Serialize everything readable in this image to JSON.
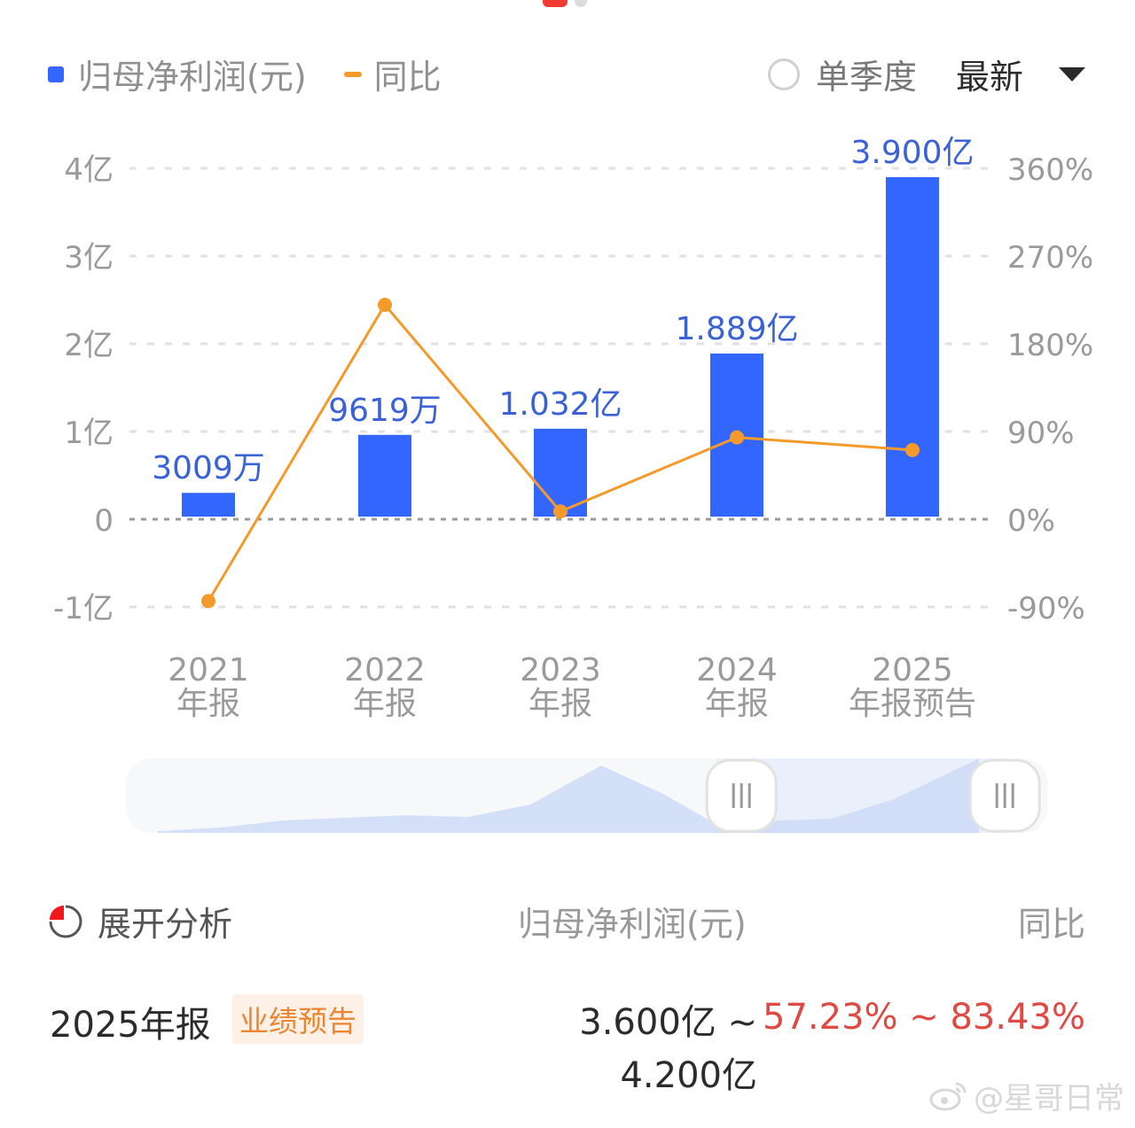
{
  "pager": {
    "active_index": 0,
    "count": 2
  },
  "legend": {
    "bar_label": "归母净利润(元)",
    "line_label": "同比"
  },
  "controls": {
    "single_quarter_label": "单季度",
    "single_quarter_checked": false,
    "period_select_value": "最新"
  },
  "colors": {
    "bar": "#3366ff",
    "line": "#f39a2b",
    "bar_label": "#3a62d6",
    "axis_text": "#9a9a9a",
    "negative_highlight": "#e04a44",
    "badge_bg": "#fdf0e6",
    "badge_text": "#ec8630"
  },
  "chart_data": {
    "type": "bar",
    "title": "",
    "categories": [
      "2021\n年报",
      "2022\n年报",
      "2023\n年报",
      "2024\n年报",
      "2025\n年报预告"
    ],
    "category_lines": [
      [
        "2021",
        "年报"
      ],
      [
        "2022",
        "年报"
      ],
      [
        "2023",
        "年报"
      ],
      [
        "2024",
        "年报"
      ],
      [
        "2025",
        "年报预告"
      ]
    ],
    "series": [
      {
        "name": "归母净利润(元)",
        "type": "bar",
        "axis": "left",
        "unit": "亿",
        "values": [
          0.3009,
          0.9619,
          1.032,
          1.889,
          3.9
        ],
        "labels": [
          "3009万",
          "9619万",
          "1.032亿",
          "1.889亿",
          "3.900亿"
        ]
      },
      {
        "name": "同比",
        "type": "line",
        "axis": "right",
        "unit": "%",
        "values": [
          -84,
          220,
          8,
          84,
          71
        ]
      }
    ],
    "left_axis": {
      "ticks": [
        "4亿",
        "3亿",
        "2亿",
        "1亿",
        "0",
        "-1亿"
      ],
      "values": [
        4,
        3,
        2,
        1,
        0,
        -1
      ],
      "ylim": [
        -1,
        4
      ]
    },
    "right_axis": {
      "ticks": [
        "360%",
        "270%",
        "180%",
        "90%",
        "0%",
        "-90%"
      ],
      "values": [
        360,
        270,
        180,
        90,
        0,
        -90
      ],
      "ylim": [
        -90,
        360
      ]
    },
    "xlabel": "",
    "ylabel": "",
    "grid": true,
    "legend_position": "top-left"
  },
  "slider": {
    "range_start_pct": 63,
    "range_end_pct": 93
  },
  "analysis": {
    "expand_label": "展开分析",
    "col_net_profit": "归母净利润(元)",
    "col_yoy": "同比"
  },
  "forecast_row": {
    "period": "2025年报",
    "badge": "业绩预告",
    "net_profit_low": "3.600亿 ~",
    "net_profit_high": "4.200亿",
    "yoy_range": "57.23% ~ 83.43%"
  },
  "watermark": "@星哥日常"
}
